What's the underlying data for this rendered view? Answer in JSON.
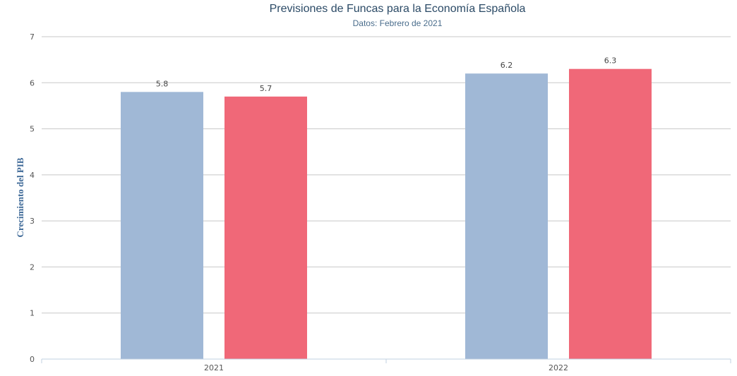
{
  "chart_data": {
    "type": "bar",
    "title": "Previsiones de Funcas para la Economía Española",
    "subtitle": "Datos: Febrero de 2021",
    "ylabel": "Crecimiento del PIB",
    "xlabel": "",
    "categories": [
      "2021",
      "2022"
    ],
    "ylim": [
      0,
      7
    ],
    "yticks": [
      0,
      1,
      2,
      3,
      4,
      5,
      6,
      7
    ],
    "grid": true,
    "legend": "none",
    "series": [
      {
        "values": [
          5.8,
          6.2
        ],
        "color": "#a0b8d6"
      },
      {
        "values": [
          5.7,
          6.3
        ],
        "color": "#f06878"
      }
    ]
  }
}
